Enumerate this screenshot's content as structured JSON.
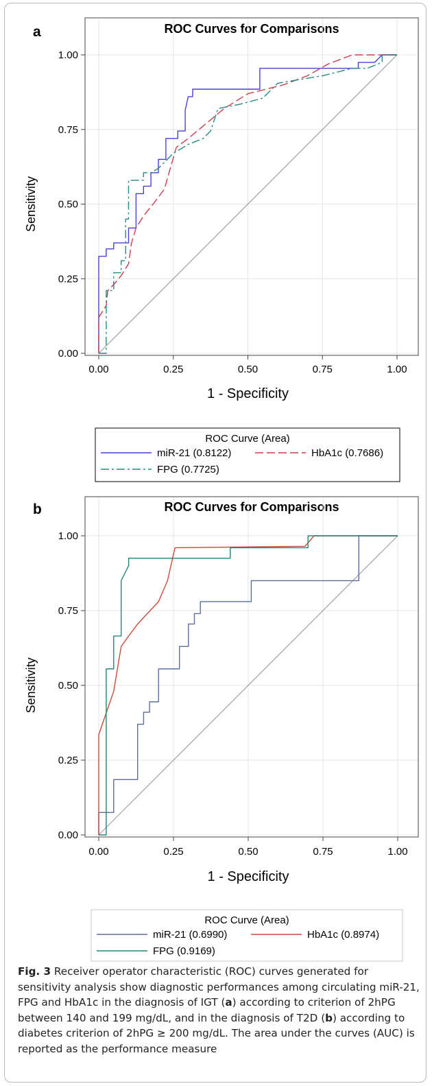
{
  "colors": {
    "mir21_a": "#4a3fd4",
    "hba1c_a": "#cc3b4f",
    "fpg_a": "#238a84",
    "mir21_b": "#5b6e9e",
    "hba1c_b": "#c94a3a",
    "fpg_b": "#23857a",
    "diagonal": "#a0a0a0"
  },
  "chart_data": [
    {
      "panel": "a",
      "type": "line",
      "title": "ROC Curves for Comparisons",
      "xlabel": "1 - Specificity",
      "ylabel": "Sensitivity",
      "xlim": [
        0,
        1
      ],
      "ylim": [
        0,
        1
      ],
      "xticks": [
        "0.00",
        "0.25",
        "0.50",
        "0.75",
        "1.00"
      ],
      "yticks": [
        "0.00",
        "0.25",
        "0.50",
        "0.75",
        "1.00"
      ],
      "grid": true,
      "legend": {
        "title": "ROC Curve (Area)",
        "position": "bottom",
        "entries": [
          {
            "series": "miR-21",
            "label": "miR-21",
            "value": "(0.8122)"
          },
          {
            "series": "HbA1c",
            "label": "HbA1c",
            "value": "(0.7686)"
          },
          {
            "series": "FPG",
            "label": "FPG",
            "value": "(0.7725)"
          }
        ]
      },
      "series": [
        {
          "name": "miR-21",
          "style": "solid",
          "points": [
            [
              0,
              0
            ],
            [
              0,
              0.325
            ],
            [
              0.025,
              0.325
            ],
            [
              0.025,
              0.35
            ],
            [
              0.05,
              0.35
            ],
            [
              0.05,
              0.37
            ],
            [
              0.1,
              0.37
            ],
            [
              0.1,
              0.42
            ],
            [
              0.125,
              0.42
            ],
            [
              0.125,
              0.535
            ],
            [
              0.15,
              0.535
            ],
            [
              0.15,
              0.56
            ],
            [
              0.175,
              0.56
            ],
            [
              0.175,
              0.605
            ],
            [
              0.2,
              0.605
            ],
            [
              0.2,
              0.65
            ],
            [
              0.225,
              0.65
            ],
            [
              0.225,
              0.72
            ],
            [
              0.265,
              0.72
            ],
            [
              0.265,
              0.745
            ],
            [
              0.29,
              0.745
            ],
            [
              0.29,
              0.815
            ],
            [
              0.3,
              0.86
            ],
            [
              0.315,
              0.86
            ],
            [
              0.315,
              0.885
            ],
            [
              0.54,
              0.885
            ],
            [
              0.54,
              0.955
            ],
            [
              0.87,
              0.955
            ],
            [
              0.87,
              0.975
            ],
            [
              0.925,
              0.975
            ],
            [
              0.95,
              1
            ],
            [
              1,
              1
            ]
          ]
        },
        {
          "name": "HbA1c",
          "style": "dashed",
          "points": [
            [
              0,
              0
            ],
            [
              0,
              0.12
            ],
            [
              0.025,
              0.16
            ],
            [
              0.03,
              0.21
            ],
            [
              0.05,
              0.23
            ],
            [
              0.075,
              0.26
            ],
            [
              0.1,
              0.3
            ],
            [
              0.11,
              0.37
            ],
            [
              0.125,
              0.42
            ],
            [
              0.15,
              0.46
            ],
            [
              0.19,
              0.51
            ],
            [
              0.22,
              0.55
            ],
            [
              0.24,
              0.62
            ],
            [
              0.26,
              0.69
            ],
            [
              0.3,
              0.72
            ],
            [
              0.36,
              0.77
            ],
            [
              0.42,
              0.82
            ],
            [
              0.5,
              0.87
            ],
            [
              0.62,
              0.9
            ],
            [
              0.7,
              0.93
            ],
            [
              0.77,
              0.97
            ],
            [
              0.85,
              1
            ],
            [
              1,
              1
            ]
          ]
        },
        {
          "name": "FPG",
          "style": "dashdot",
          "points": [
            [
              0,
              0
            ],
            [
              0.025,
              0
            ],
            [
              0.025,
              0.21
            ],
            [
              0.05,
              0.21
            ],
            [
              0.05,
              0.27
            ],
            [
              0.075,
              0.27
            ],
            [
              0.075,
              0.31
            ],
            [
              0.09,
              0.31
            ],
            [
              0.09,
              0.45
            ],
            [
              0.1,
              0.45
            ],
            [
              0.1,
              0.51
            ],
            [
              0.1,
              0.58
            ],
            [
              0.15,
              0.58
            ],
            [
              0.15,
              0.605
            ],
            [
              0.175,
              0.605
            ],
            [
              0.2,
              0.62
            ],
            [
              0.25,
              0.67
            ],
            [
              0.3,
              0.7
            ],
            [
              0.35,
              0.72
            ],
            [
              0.375,
              0.745
            ],
            [
              0.4,
              0.82
            ],
            [
              0.475,
              0.835
            ],
            [
              0.55,
              0.855
            ],
            [
              0.6,
              0.905
            ],
            [
              0.75,
              0.93
            ],
            [
              0.85,
              0.955
            ],
            [
              0.9,
              0.955
            ],
            [
              0.95,
              0.975
            ],
            [
              0.95,
              1
            ],
            [
              1,
              1
            ]
          ]
        }
      ]
    },
    {
      "panel": "b",
      "type": "line",
      "title": "ROC Curves for Comparisons",
      "xlabel": "1 - Specificity",
      "ylabel": "Sensitivity",
      "xlim": [
        0,
        1
      ],
      "ylim": [
        0,
        1
      ],
      "xticks": [
        "0.00",
        "0.25",
        "0.50",
        "0.75",
        "1.00"
      ],
      "yticks": [
        "0.00",
        "0.25",
        "0.50",
        "0.75",
        "1.00"
      ],
      "grid": true,
      "legend": {
        "title": "ROC Curve (Area)",
        "position": "bottom",
        "entries": [
          {
            "series": "miR-21",
            "label": "miR-21",
            "value": "(0.6990)"
          },
          {
            "series": "HbA1c",
            "label": "HbA1c",
            "value": "(0.8974)"
          },
          {
            "series": "FPG",
            "label": "FPG",
            "value": "(0.9169)"
          }
        ]
      },
      "series": [
        {
          "name": "miR-21",
          "style": "solid",
          "points": [
            [
              0,
              0
            ],
            [
              0,
              0.075
            ],
            [
              0.05,
              0.075
            ],
            [
              0.05,
              0.185
            ],
            [
              0.13,
              0.185
            ],
            [
              0.13,
              0.37
            ],
            [
              0.15,
              0.37
            ],
            [
              0.15,
              0.41
            ],
            [
              0.17,
              0.41
            ],
            [
              0.17,
              0.445
            ],
            [
              0.2,
              0.445
            ],
            [
              0.2,
              0.555
            ],
            [
              0.27,
              0.555
            ],
            [
              0.27,
              0.63
            ],
            [
              0.3,
              0.63
            ],
            [
              0.3,
              0.705
            ],
            [
              0.32,
              0.705
            ],
            [
              0.32,
              0.74
            ],
            [
              0.34,
              0.74
            ],
            [
              0.34,
              0.78
            ],
            [
              0.51,
              0.78
            ],
            [
              0.51,
              0.85
            ],
            [
              0.87,
              0.85
            ],
            [
              0.87,
              1
            ],
            [
              1,
              1
            ]
          ]
        },
        {
          "name": "HbA1c",
          "style": "solid",
          "points": [
            [
              0,
              0
            ],
            [
              0,
              0.335
            ],
            [
              0.05,
              0.48
            ],
            [
              0.075,
              0.63
            ],
            [
              0.1,
              0.665
            ],
            [
              0.13,
              0.705
            ],
            [
              0.2,
              0.78
            ],
            [
              0.23,
              0.85
            ],
            [
              0.255,
              0.96
            ],
            [
              0.69,
              0.965
            ],
            [
              0.72,
              1
            ],
            [
              1,
              1
            ]
          ]
        },
        {
          "name": "FPG",
          "style": "solid",
          "points": [
            [
              0,
              0
            ],
            [
              0.025,
              0
            ],
            [
              0.025,
              0.555
            ],
            [
              0.05,
              0.555
            ],
            [
              0.05,
              0.665
            ],
            [
              0.075,
              0.665
            ],
            [
              0.075,
              0.85
            ],
            [
              0.1,
              0.9
            ],
            [
              0.1,
              0.925
            ],
            [
              0.44,
              0.925
            ],
            [
              0.44,
              0.96
            ],
            [
              0.7,
              0.96
            ],
            [
              0.7,
              1
            ],
            [
              1,
              1
            ]
          ]
        }
      ]
    }
  ],
  "caption": {
    "label": "Fig. 3",
    "seg1": "Receiver operator characteristic (ROC) curves generated for sensitivity analysis show diagnostic performances among circulating miR-21, FPG and HbA1c in the diagnosis of IGT (",
    "panel_a": "a",
    "seg2": ") according to criterion of 2hPG between 140 and 199 mg/dL, and in the diagnosis of T2D (",
    "panel_b": "b",
    "seg3": ") according to diabetes criterion of 2hPG ≥ 200 mg/dL. The area under the curves (AUC) is reported as the performance measure"
  }
}
